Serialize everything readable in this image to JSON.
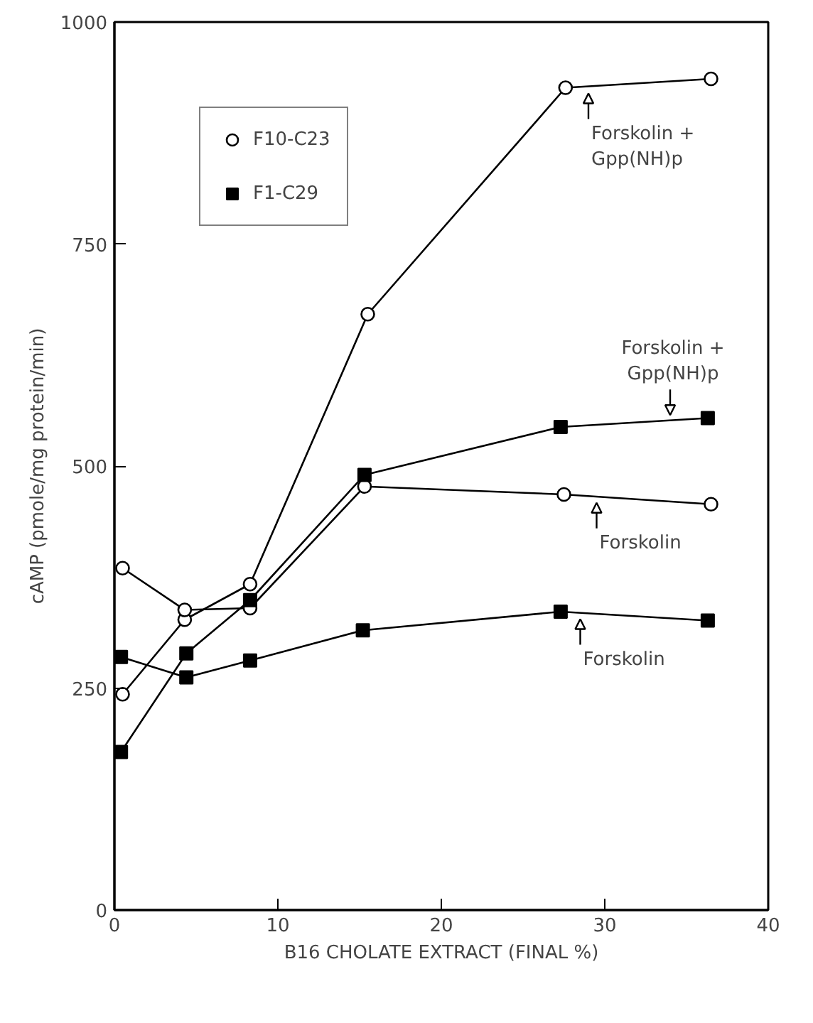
{
  "chart_data": {
    "type": "line",
    "xlabel": "B16 CHOLATE EXTRACT (FINAL %)",
    "ylabel": "cAMP (pmole/mg protein/min)",
    "xlim": [
      0,
      40
    ],
    "ylim": [
      0,
      1000
    ],
    "xticks": [
      0,
      10,
      20,
      30,
      40
    ],
    "yticks": [
      0,
      250,
      500,
      750,
      1000
    ],
    "grid": false,
    "legend": "top left",
    "line_style": "solid",
    "series": [
      {
        "name": "F10-C23",
        "marker": "circle",
        "color": "#000000",
        "x": [
          0.5,
          4.3,
          8.3,
          15.5,
          27.6,
          36.5
        ],
        "values": [
          243,
          327,
          367,
          671,
          926,
          936
        ]
      },
      {
        "marker": "circle",
        "color": "#000000",
        "x": [
          0.5,
          4.3,
          8.3,
          15.3,
          27.5,
          36.5
        ],
        "values": [
          385,
          338,
          340,
          477,
          468,
          457
        ]
      },
      {
        "name": "F1-C29",
        "marker": "square",
        "color": "#000000",
        "x": [
          0.4,
          4.4,
          8.3,
          15.3,
          27.3,
          36.3
        ],
        "values": [
          178,
          289,
          349,
          490,
          544,
          554
        ]
      },
      {
        "marker": "square",
        "color": "#000000",
        "x": [
          0.4,
          4.4,
          8.3,
          15.2,
          27.3,
          36.3
        ],
        "values": [
          285,
          262,
          281,
          315,
          336,
          326
        ]
      }
    ],
    "annotations": [
      {
        "text": "Forskolin +\nGpp(NH)p",
        "x": 29,
        "y": 926
      },
      {
        "text": "Forskolin +\nGpp(NH)p",
        "x": 34,
        "y": 551
      },
      {
        "text": "Forskolin",
        "x": 29.5,
        "y": 465
      },
      {
        "text": "Forskolin",
        "x": 28.5,
        "y": 334
      }
    ]
  }
}
